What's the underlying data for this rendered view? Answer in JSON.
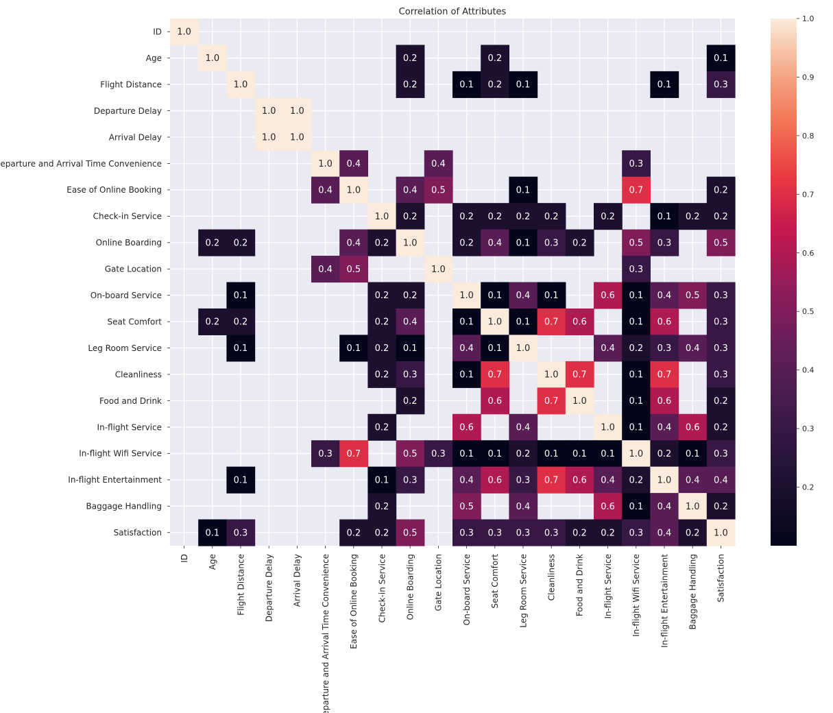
{
  "chart_data": {
    "type": "heatmap",
    "title": "Correlation of Attributes",
    "labels": [
      "ID",
      "Age",
      "Flight Distance",
      "Departure Delay",
      "Arrival Delay",
      "Departure and Arrival Time Convenience",
      "Ease of Online Booking",
      "Check-in Service",
      "Online Boarding",
      "Gate Location",
      "On-board Service",
      "Seat Comfort",
      "Leg Room Service",
      "Cleanliness",
      "Food and Drink",
      "In-flight Service",
      "In-flight Wifi Service",
      "In-flight Entertainment",
      "Baggage Handling",
      "Satisfaction"
    ],
    "annotation_format": "1 decimal",
    "masked_cells_shown_as": "blank",
    "matrix": [
      [
        1.0,
        null,
        null,
        null,
        null,
        null,
        null,
        null,
        null,
        null,
        null,
        null,
        null,
        null,
        null,
        null,
        null,
        null,
        null,
        null
      ],
      [
        null,
        1.0,
        null,
        null,
        null,
        null,
        null,
        null,
        0.2,
        null,
        null,
        0.2,
        null,
        null,
        null,
        null,
        null,
        null,
        null,
        0.1
      ],
      [
        null,
        null,
        1.0,
        null,
        null,
        null,
        null,
        null,
        0.2,
        null,
        0.1,
        0.2,
        0.1,
        null,
        null,
        null,
        null,
        0.1,
        null,
        0.3
      ],
      [
        null,
        null,
        null,
        1.0,
        1.0,
        null,
        null,
        null,
        null,
        null,
        null,
        null,
        null,
        null,
        null,
        null,
        null,
        null,
        null,
        null
      ],
      [
        null,
        null,
        null,
        1.0,
        1.0,
        null,
        null,
        null,
        null,
        null,
        null,
        null,
        null,
        null,
        null,
        null,
        null,
        null,
        null,
        null
      ],
      [
        null,
        null,
        null,
        null,
        null,
        1.0,
        0.4,
        null,
        null,
        0.4,
        null,
        null,
        null,
        null,
        null,
        null,
        0.3,
        null,
        null,
        null
      ],
      [
        null,
        null,
        null,
        null,
        null,
        0.4,
        1.0,
        null,
        0.4,
        0.5,
        null,
        null,
        0.1,
        null,
        null,
        null,
        0.7,
        null,
        null,
        0.2
      ],
      [
        null,
        null,
        null,
        null,
        null,
        null,
        null,
        1.0,
        0.2,
        null,
        0.2,
        0.2,
        0.2,
        0.2,
        null,
        0.2,
        null,
        0.1,
        0.2,
        0.2
      ],
      [
        null,
        0.2,
        0.2,
        null,
        null,
        null,
        0.4,
        0.2,
        1.0,
        null,
        0.2,
        0.4,
        0.1,
        0.3,
        0.2,
        null,
        0.5,
        0.3,
        null,
        0.5
      ],
      [
        null,
        null,
        null,
        null,
        null,
        0.4,
        0.5,
        null,
        null,
        1.0,
        null,
        null,
        null,
        null,
        null,
        null,
        0.3,
        null,
        null,
        null
      ],
      [
        null,
        null,
        0.1,
        null,
        null,
        null,
        null,
        0.2,
        0.2,
        null,
        1.0,
        0.1,
        0.4,
        0.1,
        null,
        0.6,
        0.1,
        0.4,
        0.5,
        0.3
      ],
      [
        null,
        0.2,
        0.2,
        null,
        null,
        null,
        null,
        0.2,
        0.4,
        null,
        0.1,
        1.0,
        0.1,
        0.7,
        0.6,
        null,
        0.1,
        0.6,
        null,
        0.3
      ],
      [
        null,
        null,
        0.1,
        null,
        null,
        null,
        0.1,
        0.2,
        0.1,
        null,
        0.4,
        0.1,
        1.0,
        null,
        null,
        0.4,
        0.2,
        0.3,
        0.4,
        0.3
      ],
      [
        null,
        null,
        null,
        null,
        null,
        null,
        null,
        0.2,
        0.3,
        null,
        0.1,
        0.7,
        null,
        1.0,
        0.7,
        null,
        0.1,
        0.7,
        null,
        0.3
      ],
      [
        null,
        null,
        null,
        null,
        null,
        null,
        null,
        null,
        0.2,
        null,
        null,
        0.6,
        null,
        0.7,
        1.0,
        null,
        0.1,
        0.6,
        null,
        0.2
      ],
      [
        null,
        null,
        null,
        null,
        null,
        null,
        null,
        0.2,
        null,
        null,
        0.6,
        null,
        0.4,
        null,
        null,
        1.0,
        0.1,
        0.4,
        0.6,
        0.2
      ],
      [
        null,
        null,
        null,
        null,
        null,
        0.3,
        0.7,
        null,
        0.5,
        0.3,
        0.1,
        0.1,
        0.2,
        0.1,
        0.1,
        0.1,
        1.0,
        0.2,
        0.1,
        0.3
      ],
      [
        null,
        null,
        0.1,
        null,
        null,
        null,
        null,
        0.1,
        0.3,
        null,
        0.4,
        0.6,
        0.3,
        0.7,
        0.6,
        0.4,
        0.2,
        1.0,
        0.4,
        0.4
      ],
      [
        null,
        null,
        null,
        null,
        null,
        null,
        null,
        0.2,
        null,
        null,
        0.5,
        null,
        0.4,
        null,
        null,
        0.6,
        0.1,
        0.4,
        1.0,
        0.2
      ],
      [
        null,
        0.1,
        0.3,
        null,
        null,
        null,
        0.2,
        0.2,
        0.5,
        null,
        0.3,
        0.3,
        0.3,
        0.3,
        0.2,
        0.2,
        0.3,
        0.4,
        0.2,
        1.0
      ]
    ],
    "colorbar": {
      "min": 0.1,
      "max": 1.0,
      "ticks": [
        0.2,
        0.3,
        0.4,
        0.5,
        0.6,
        0.7,
        0.8,
        0.9,
        1.0
      ],
      "tick_labels": [
        "0.2",
        "0.3",
        "0.4",
        "0.5",
        "0.6",
        "0.7",
        "0.8",
        "0.9",
        "1.0"
      ],
      "colormap": "rocket"
    },
    "grid": true
  },
  "colors": {
    "axes_background": "#eaeaf2",
    "grid": "#ffffff",
    "text": "#262626"
  }
}
